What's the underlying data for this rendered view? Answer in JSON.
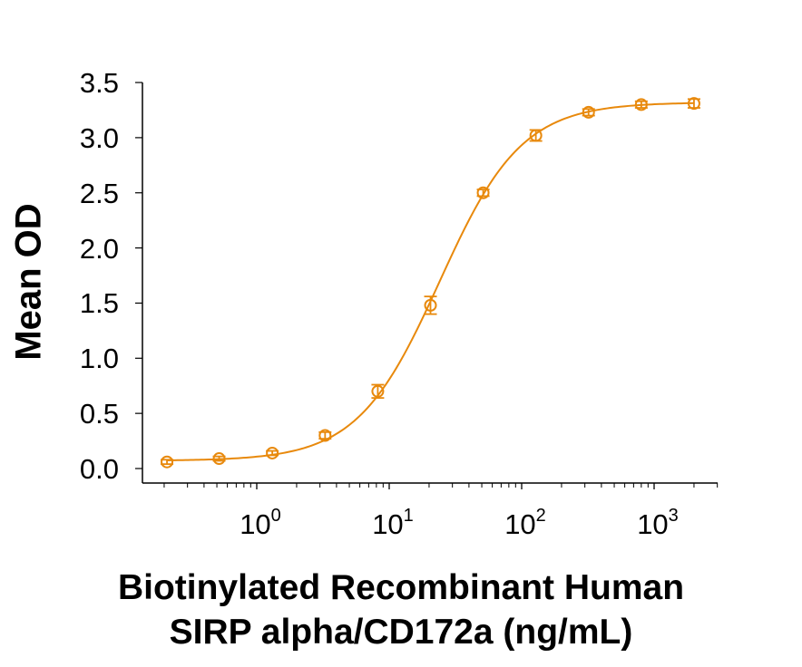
{
  "chart_data": {
    "type": "scatter",
    "title": "",
    "xlabel_lines": [
      "Biotinylated Recombinant Human",
      "SIRP alpha/CD172a (ng/mL)"
    ],
    "ylabel": "Mean OD",
    "xscale": "log",
    "xlim": [
      0.14,
      3000
    ],
    "ylim": [
      0.0,
      3.5
    ],
    "grid": false,
    "legend": null,
    "yticks": [
      "0.0",
      "0.5",
      "1.0",
      "1.5",
      "2.0",
      "2.5",
      "3.0",
      "3.5"
    ],
    "xticks": [
      {
        "base": "10",
        "exp": "0",
        "value": 1
      },
      {
        "base": "10",
        "exp": "1",
        "value": 10
      },
      {
        "base": "10",
        "exp": "2",
        "value": 100
      },
      {
        "base": "10",
        "exp": "3",
        "value": 1000
      }
    ],
    "series": [
      {
        "name": "Mean OD",
        "color": "#E8890C",
        "marker": "open-circle",
        "x": [
          0.21,
          0.52,
          1.31,
          3.28,
          8.2,
          20.5,
          51.2,
          128,
          320,
          800,
          2000
        ],
        "y": [
          0.06,
          0.09,
          0.14,
          0.3,
          0.7,
          1.48,
          2.5,
          3.02,
          3.23,
          3.3,
          3.31
        ],
        "error": [
          0.02,
          0.02,
          0.02,
          0.03,
          0.06,
          0.08,
          0.03,
          0.05,
          0.03,
          0.03,
          0.04
        ]
      }
    ],
    "fit": {
      "model": "4PL",
      "bottom": 0.07,
      "top": 3.32,
      "ec50": 24,
      "hill": 1.4,
      "color": "#E8890C"
    }
  }
}
